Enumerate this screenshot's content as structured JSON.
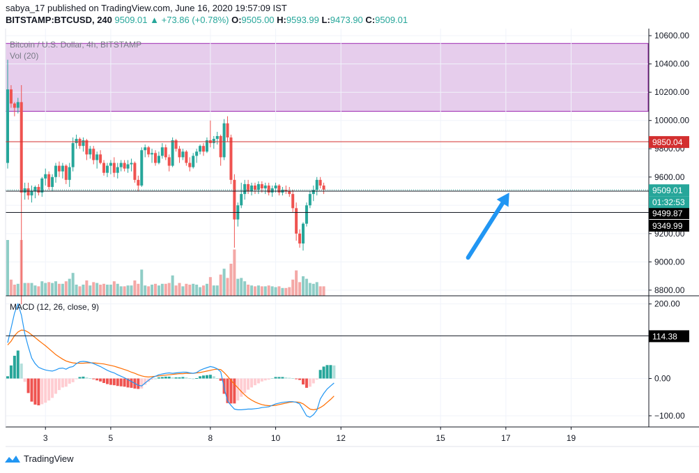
{
  "header": {
    "publish_line": "sabya_17 published on TradingView.com, June 16, 2020 19:57:09 IST",
    "symbol": "BITSTAMP:BTCUSD, 240",
    "last": "9509.01",
    "change": "▲ +73.86 (+0.78%)",
    "o_label": "O:",
    "o_value": "9505.00",
    "h_label": "H:",
    "h_value": "9593.99",
    "l_label": "L:",
    "l_value": "9473.90",
    "c_label": "C:",
    "c_value": "9509.01"
  },
  "legend": {
    "series_title": "Bitcoin / U.S. Dollar, 4h, BITSTAMP",
    "volume_title": "Vol (20)",
    "macd_title": "MACD (12, 26, close, 9)"
  },
  "footer": {
    "brand": "TradingView"
  },
  "colors": {
    "up": "#26a69a",
    "down": "#ef5350",
    "up_vol": "#8fcdc6",
    "down_vol": "#f4a8a6",
    "zone_fill": "#e6cdec",
    "zone_border": "#9c27b0",
    "macd_line": "#2196f3",
    "signal_line": "#ff6d00",
    "resistance": "#d32f2f",
    "arrow": "#2196f3"
  },
  "chart_data": [
    {
      "type": "candlestick",
      "title": "Bitcoin / U.S. Dollar, 4h, BITSTAMP",
      "x_tick_labels": [
        "3",
        "5",
        "8",
        "10",
        "12",
        "15",
        "17",
        "19"
      ],
      "x_tick_bar_index": [
        11,
        30,
        59,
        78,
        97,
        126,
        145,
        164
      ],
      "y_ticks": [
        8800,
        9000,
        9200,
        9400,
        9600,
        9800,
        10000,
        10200,
        10400,
        10600
      ],
      "y_tick_labels": [
        "8800.00",
        "9000.00",
        "9200.00",
        "9400.00",
        "9600.00",
        "9800.00",
        "10000.00",
        "10200.00",
        "10400.00",
        "10600.00"
      ],
      "ylim": [
        8760,
        10650
      ],
      "price_labels": [
        {
          "value": 9850.04,
          "text": "9850.04",
          "style": "red"
        },
        {
          "value": 9509.01,
          "text": "9509.01",
          "style": "green"
        },
        {
          "value": 9499.87,
          "text": "9499.87",
          "style": "black"
        },
        {
          "value": 9349.99,
          "text": "9349.99",
          "style": "black"
        }
      ],
      "countdown": "01:32:53",
      "zone": {
        "low": 10065,
        "high": 10545
      },
      "horizontal_lines": [
        {
          "value": 9850,
          "kind": "resistance"
        },
        {
          "value": 9509,
          "kind": "last_price_dotted"
        },
        {
          "value": 9500,
          "kind": "support"
        },
        {
          "value": 9350,
          "kind": "support"
        }
      ],
      "arrow": {
        "from_bar": 134,
        "from_price": 9030,
        "to_bar": 146,
        "to_price": 9490
      },
      "ohlc": [
        [
          9700,
          10430,
          9660,
          10220
        ],
        [
          10220,
          10250,
          10090,
          10120
        ],
        [
          10120,
          10130,
          10030,
          10090
        ],
        [
          10090,
          10160,
          10050,
          10130
        ],
        [
          10130,
          10250,
          8700,
          9490
        ],
        [
          9490,
          9560,
          9440,
          9520
        ],
        [
          9520,
          9560,
          9440,
          9470
        ],
        [
          9470,
          9540,
          9420,
          9500
        ],
        [
          9500,
          9540,
          9450,
          9530
        ],
        [
          9530,
          9550,
          9470,
          9490
        ],
        [
          9490,
          9600,
          9460,
          9590
        ],
        [
          9590,
          9660,
          9540,
          9620
        ],
        [
          9620,
          9640,
          9510,
          9530
        ],
        [
          9530,
          9620,
          9500,
          9600
        ],
        [
          9600,
          9700,
          9560,
          9680
        ],
        [
          9680,
          9710,
          9600,
          9640
        ],
        [
          9640,
          9700,
          9590,
          9680
        ],
        [
          9680,
          9690,
          9550,
          9580
        ],
        [
          9580,
          9700,
          9530,
          9670
        ],
        [
          9670,
          9880,
          9640,
          9840
        ],
        [
          9840,
          9900,
          9800,
          9870
        ],
        [
          9870,
          9880,
          9800,
          9820
        ],
        [
          9820,
          9880,
          9780,
          9860
        ],
        [
          9860,
          9870,
          9720,
          9760
        ],
        [
          9760,
          9820,
          9730,
          9800
        ],
        [
          9800,
          9820,
          9690,
          9720
        ],
        [
          9720,
          9780,
          9660,
          9760
        ],
        [
          9760,
          9790,
          9690,
          9700
        ],
        [
          9700,
          9720,
          9610,
          9630
        ],
        [
          9630,
          9700,
          9600,
          9680
        ],
        [
          9680,
          9720,
          9620,
          9700
        ],
        [
          9700,
          9740,
          9600,
          9630
        ],
        [
          9630,
          9700,
          9590,
          9670
        ],
        [
          9670,
          9720,
          9640,
          9700
        ],
        [
          9700,
          9720,
          9640,
          9660
        ],
        [
          9660,
          9720,
          9630,
          9690
        ],
        [
          9690,
          9730,
          9640,
          9700
        ],
        [
          9700,
          9710,
          9560,
          9580
        ],
        [
          9580,
          9610,
          9500,
          9540
        ],
        [
          9540,
          9810,
          9530,
          9790
        ],
        [
          9790,
          9830,
          9740,
          9810
        ],
        [
          9810,
          9820,
          9740,
          9760
        ],
        [
          9760,
          9800,
          9700,
          9770
        ],
        [
          9770,
          9790,
          9680,
          9700
        ],
        [
          9700,
          9780,
          9690,
          9750
        ],
        [
          9750,
          9840,
          9730,
          9810
        ],
        [
          9810,
          9830,
          9720,
          9740
        ],
        [
          9740,
          9760,
          9640,
          9680
        ],
        [
          9680,
          9880,
          9670,
          9860
        ],
        [
          9860,
          9870,
          9780,
          9800
        ],
        [
          9800,
          9820,
          9700,
          9740
        ],
        [
          9740,
          9800,
          9720,
          9780
        ],
        [
          9780,
          9790,
          9680,
          9700
        ],
        [
          9700,
          9740,
          9640,
          9670
        ],
        [
          9670,
          9770,
          9660,
          9750
        ],
        [
          9750,
          9800,
          9700,
          9780
        ],
        [
          9780,
          9830,
          9760,
          9820
        ],
        [
          9820,
          9840,
          9750,
          9780
        ],
        [
          9780,
          9880,
          9770,
          9860
        ],
        [
          9860,
          10000,
          9810,
          9840
        ],
        [
          9840,
          9890,
          9800,
          9870
        ],
        [
          9870,
          9920,
          9830,
          9890
        ],
        [
          9890,
          9900,
          9680,
          9740
        ],
        [
          9740,
          10010,
          9720,
          9980
        ],
        [
          9980,
          10030,
          9850,
          9880
        ],
        [
          9880,
          9900,
          9550,
          9580
        ],
        [
          9580,
          9620,
          9100,
          9300
        ],
        [
          9300,
          9420,
          9250,
          9400
        ],
        [
          9400,
          9560,
          9380,
          9480
        ],
        [
          9480,
          9580,
          9440,
          9550
        ],
        [
          9550,
          9580,
          9480,
          9500
        ],
        [
          9500,
          9560,
          9470,
          9540
        ],
        [
          9540,
          9560,
          9480,
          9510
        ],
        [
          9510,
          9570,
          9480,
          9550
        ],
        [
          9550,
          9570,
          9490,
          9520
        ],
        [
          9520,
          9560,
          9480,
          9540
        ],
        [
          9540,
          9560,
          9470,
          9490
        ],
        [
          9490,
          9540,
          9460,
          9520
        ],
        [
          9520,
          9560,
          9490,
          9540
        ],
        [
          9540,
          9550,
          9470,
          9490
        ],
        [
          9490,
          9530,
          9470,
          9510
        ],
        [
          9510,
          9540,
          9480,
          9500
        ],
        [
          9500,
          9530,
          9460,
          9480
        ],
        [
          9480,
          9510,
          9350,
          9380
        ],
        [
          9380,
          9420,
          9150,
          9200
        ],
        [
          9200,
          9230,
          9100,
          9130
        ],
        [
          9130,
          9280,
          9080,
          9270
        ],
        [
          9270,
          9420,
          9250,
          9400
        ],
        [
          9400,
          9500,
          9380,
          9480
        ],
        [
          9480,
          9540,
          9430,
          9510
        ],
        [
          9510,
          9600,
          9470,
          9580
        ],
        [
          9580,
          9600,
          9520,
          9540
        ],
        [
          9540,
          9560,
          9480,
          9510
        ]
      ],
      "volume_ylim": [
        0,
        2000
      ]
    },
    {
      "type": "line",
      "title": "MACD (12, 26, close, 9)",
      "y_ticks": [
        -100,
        0,
        200
      ],
      "y_tick_labels": [
        "−100.00",
        "0.00",
        "200.00"
      ],
      "ylim": [
        -130,
        220
      ],
      "label": {
        "value": 114.38,
        "text": "114.38"
      },
      "series": [
        {
          "name": "MACD",
          "values": [
            96,
            135,
            176,
            200,
            170,
            120,
            85,
            55,
            40,
            30,
            26,
            23,
            21,
            20,
            23,
            27,
            28,
            25,
            30,
            32,
            40,
            45,
            46,
            45,
            43,
            40,
            36,
            32,
            27,
            22,
            18,
            15,
            10,
            6,
            2,
            -3,
            -8,
            -13,
            -18,
            -20,
            -12,
            -5,
            2,
            6,
            10,
            12,
            14,
            15,
            14,
            15,
            16,
            17,
            17,
            15,
            14,
            16,
            22,
            26,
            29,
            32,
            30,
            26,
            18,
            -25,
            -60,
            -72,
            -82,
            -84,
            -84,
            -83,
            -82,
            -82,
            -81,
            -80,
            -78,
            -77,
            -76,
            -72,
            -68,
            -66,
            -64,
            -63,
            -62,
            -62,
            -64,
            -68,
            -84,
            -100,
            -104,
            -97,
            -85,
            -55,
            -40,
            -28,
            -20,
            -12
          ]
        },
        {
          "name": "Signal",
          "values": [
            90,
            100,
            115,
            125,
            130,
            129,
            124,
            117,
            110,
            102,
            95,
            88,
            80,
            72,
            64,
            58,
            52,
            47,
            44,
            42,
            41,
            41,
            41,
            42,
            42,
            42,
            41,
            40,
            39,
            37,
            35,
            33,
            30,
            27,
            24,
            21,
            17,
            14,
            10,
            7,
            5,
            4,
            5,
            6,
            7,
            8,
            9,
            10,
            11,
            12,
            13,
            13,
            14,
            14,
            14,
            15,
            16,
            18,
            20,
            22,
            24,
            25,
            24,
            16,
            6,
            -5,
            -15,
            -25,
            -35,
            -44,
            -52,
            -58,
            -63,
            -67,
            -70,
            -72,
            -73,
            -73,
            -72,
            -70,
            -68,
            -66,
            -64,
            -63,
            -63,
            -64,
            -68,
            -75,
            -82,
            -84,
            -82,
            -78,
            -72,
            -64,
            -56,
            -47
          ]
        }
      ]
    }
  ]
}
